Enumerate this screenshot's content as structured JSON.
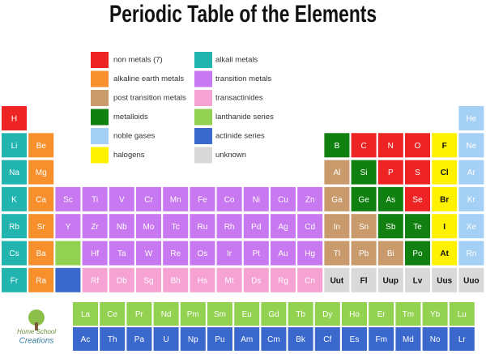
{
  "title": "Periodic Table of the Elements",
  "legend": [
    {
      "label": "non metals (7)",
      "color": "#ee2424"
    },
    {
      "label": "alkaline earth metals",
      "color": "#f7902c"
    },
    {
      "label": "post transition metals",
      "color": "#c99a6c"
    },
    {
      "label": "metalloids",
      "color": "#108010"
    },
    {
      "label": "noble gases",
      "color": "#a5d0f5"
    },
    {
      "label": "halogens",
      "color": "#fff200"
    },
    {
      "label": "alkali metals",
      "color": "#22b5b0"
    },
    {
      "label": "transition metals",
      "color": "#c878f0"
    },
    {
      "label": "transactinides",
      "color": "#f6a3d4"
    },
    {
      "label": "lanthanide series",
      "color": "#93d150"
    },
    {
      "label": "actinide series",
      "color": "#3a68cc"
    },
    {
      "label": "unknown",
      "color": "#d9d9d9"
    }
  ],
  "table": {
    "rows": [
      [
        {
          "symbol": "H",
          "category": "non metals (7)"
        },
        null,
        null,
        null,
        null,
        null,
        null,
        null,
        null,
        null,
        null,
        null,
        null,
        null,
        null,
        null,
        null,
        {
          "symbol": "He",
          "category": "noble gases"
        }
      ],
      [
        {
          "symbol": "Li",
          "category": "alkali metals"
        },
        {
          "symbol": "Be",
          "category": "alkaline earth metals"
        },
        null,
        null,
        null,
        null,
        null,
        null,
        null,
        null,
        null,
        null,
        {
          "symbol": "B",
          "category": "metalloids"
        },
        {
          "symbol": "C",
          "category": "non metals (7)"
        },
        {
          "symbol": "N",
          "category": "non metals (7)"
        },
        {
          "symbol": "O",
          "category": "non metals (7)"
        },
        {
          "symbol": "F",
          "category": "halogens"
        },
        {
          "symbol": "Ne",
          "category": "noble gases"
        }
      ],
      [
        {
          "symbol": "Na",
          "category": "alkali metals"
        },
        {
          "symbol": "Mg",
          "category": "alkaline earth metals"
        },
        null,
        null,
        null,
        null,
        null,
        null,
        null,
        null,
        null,
        null,
        {
          "symbol": "Al",
          "category": "post transition metals"
        },
        {
          "symbol": "Si",
          "category": "metalloids"
        },
        {
          "symbol": "P",
          "category": "non metals (7)"
        },
        {
          "symbol": "S",
          "category": "non metals (7)"
        },
        {
          "symbol": "Cl",
          "category": "halogens"
        },
        {
          "symbol": "Ar",
          "category": "noble gases"
        }
      ],
      [
        {
          "symbol": "K",
          "category": "alkali metals"
        },
        {
          "symbol": "Ca",
          "category": "alkaline earth metals"
        },
        {
          "symbol": "Sc",
          "category": "transition metals"
        },
        {
          "symbol": "Ti",
          "category": "transition metals"
        },
        {
          "symbol": "V",
          "category": "transition metals"
        },
        {
          "symbol": "Cr",
          "category": "transition metals"
        },
        {
          "symbol": "Mn",
          "category": "transition metals"
        },
        {
          "symbol": "Fe",
          "category": "transition metals"
        },
        {
          "symbol": "Co",
          "category": "transition metals"
        },
        {
          "symbol": "Ni",
          "category": "transition metals"
        },
        {
          "symbol": "Cu",
          "category": "transition metals"
        },
        {
          "symbol": "Zn",
          "category": "transition metals"
        },
        {
          "symbol": "Ga",
          "category": "post transition metals"
        },
        {
          "symbol": "Ge",
          "category": "metalloids"
        },
        {
          "symbol": "As",
          "category": "metalloids"
        },
        {
          "symbol": "Se",
          "category": "non metals (7)"
        },
        {
          "symbol": "Br",
          "category": "halogens"
        },
        {
          "symbol": "Kr",
          "category": "noble gases"
        }
      ],
      [
        {
          "symbol": "Rb",
          "category": "alkali metals"
        },
        {
          "symbol": "Sr",
          "category": "alkaline earth metals"
        },
        {
          "symbol": "Y",
          "category": "transition metals"
        },
        {
          "symbol": "Zr",
          "category": "transition metals"
        },
        {
          "symbol": "Nb",
          "category": "transition metals"
        },
        {
          "symbol": "Mo",
          "category": "transition metals"
        },
        {
          "symbol": "Tc",
          "category": "transition metals"
        },
        {
          "symbol": "Ru",
          "category": "transition metals"
        },
        {
          "symbol": "Rh",
          "category": "transition metals"
        },
        {
          "symbol": "Pd",
          "category": "transition metals"
        },
        {
          "symbol": "Ag",
          "category": "transition metals"
        },
        {
          "symbol": "Cd",
          "category": "transition metals"
        },
        {
          "symbol": "In",
          "category": "post transition metals"
        },
        {
          "symbol": "Sn",
          "category": "post transition metals"
        },
        {
          "symbol": "Sb",
          "category": "metalloids"
        },
        {
          "symbol": "Te",
          "category": "metalloids"
        },
        {
          "symbol": "I",
          "category": "halogens"
        },
        {
          "symbol": "Xe",
          "category": "noble gases"
        }
      ],
      [
        {
          "symbol": "Cs",
          "category": "alkali metals"
        },
        {
          "symbol": "Ba",
          "category": "alkaline earth metals"
        },
        {
          "category": "lanthanide series"
        },
        {
          "symbol": "Hf",
          "category": "transition metals"
        },
        {
          "symbol": "Ta",
          "category": "transition metals"
        },
        {
          "symbol": "W",
          "category": "transition metals"
        },
        {
          "symbol": "Re",
          "category": "transition metals"
        },
        {
          "symbol": "Os",
          "category": "transition metals"
        },
        {
          "symbol": "Ir",
          "category": "transition metals"
        },
        {
          "symbol": "Pt",
          "category": "transition metals"
        },
        {
          "symbol": "Au",
          "category": "transition metals"
        },
        {
          "symbol": "Hg",
          "category": "transition metals"
        },
        {
          "symbol": "Tl",
          "category": "post transition metals"
        },
        {
          "symbol": "Pb",
          "category": "post transition metals"
        },
        {
          "symbol": "Bi",
          "category": "post transition metals"
        },
        {
          "symbol": "Po",
          "category": "metalloids"
        },
        {
          "symbol": "At",
          "category": "halogens"
        },
        {
          "symbol": "Rn",
          "category": "noble gases"
        }
      ],
      [
        {
          "symbol": "Fr",
          "category": "alkali metals"
        },
        {
          "symbol": "Ra",
          "category": "alkaline earth metals"
        },
        {
          "category": "actinide series"
        },
        {
          "symbol": "Rf",
          "category": "transactinides"
        },
        {
          "symbol": "Db",
          "category": "transactinides"
        },
        {
          "symbol": "Sg",
          "category": "transactinides"
        },
        {
          "symbol": "Bh",
          "category": "transactinides"
        },
        {
          "symbol": "Hs",
          "category": "transactinides"
        },
        {
          "symbol": "Mt",
          "category": "transactinides"
        },
        {
          "symbol": "Ds",
          "category": "transactinides"
        },
        {
          "symbol": "Rg",
          "category": "transactinides"
        },
        {
          "symbol": "Cn",
          "category": "transactinides"
        },
        {
          "symbol": "Uut",
          "category": "unknown"
        },
        {
          "symbol": "Fl",
          "category": "unknown"
        },
        {
          "symbol": "Uup",
          "category": "unknown"
        },
        {
          "symbol": "Lv",
          "category": "unknown"
        },
        {
          "symbol": "Uus",
          "category": "unknown"
        },
        {
          "symbol": "Uuo",
          "category": "unknown"
        }
      ]
    ],
    "series_rows": [
      [
        {
          "symbol": "La",
          "category": "lanthanide series"
        },
        {
          "symbol": "Ce",
          "category": "lanthanide series"
        },
        {
          "symbol": "Pr",
          "category": "lanthanide series"
        },
        {
          "symbol": "Nd",
          "category": "lanthanide series"
        },
        {
          "symbol": "Pm",
          "category": "lanthanide series"
        },
        {
          "symbol": "Sm",
          "category": "lanthanide series"
        },
        {
          "symbol": "Eu",
          "category": "lanthanide series"
        },
        {
          "symbol": "Gd",
          "category": "lanthanide series"
        },
        {
          "symbol": "Tb",
          "category": "lanthanide series"
        },
        {
          "symbol": "Dy",
          "category": "lanthanide series"
        },
        {
          "symbol": "Ho",
          "category": "lanthanide series"
        },
        {
          "symbol": "Er",
          "category": "lanthanide series"
        },
        {
          "symbol": "Tm",
          "category": "lanthanide series"
        },
        {
          "symbol": "Yb",
          "category": "lanthanide series"
        },
        {
          "symbol": "Lu",
          "category": "lanthanide series"
        }
      ],
      [
        {
          "symbol": "Ac",
          "category": "actinide series"
        },
        {
          "symbol": "Th",
          "category": "actinide series"
        },
        {
          "symbol": "Pa",
          "category": "actinide series"
        },
        {
          "symbol": "U",
          "category": "actinide series"
        },
        {
          "symbol": "Np",
          "category": "actinide series"
        },
        {
          "symbol": "Pu",
          "category": "actinide series"
        },
        {
          "symbol": "Am",
          "category": "actinide series"
        },
        {
          "symbol": "Cm",
          "category": "actinide series"
        },
        {
          "symbol": "Bk",
          "category": "actinide series"
        },
        {
          "symbol": "Cf",
          "category": "actinide series"
        },
        {
          "symbol": "Es",
          "category": "actinide series"
        },
        {
          "symbol": "Fm",
          "category": "actinide series"
        },
        {
          "symbol": "Md",
          "category": "actinide series"
        },
        {
          "symbol": "No",
          "category": "actinide series"
        },
        {
          "symbol": "Lr",
          "category": "actinide series"
        }
      ]
    ]
  },
  "logo": {
    "line1": "Home School",
    "line2": "Creations"
  }
}
